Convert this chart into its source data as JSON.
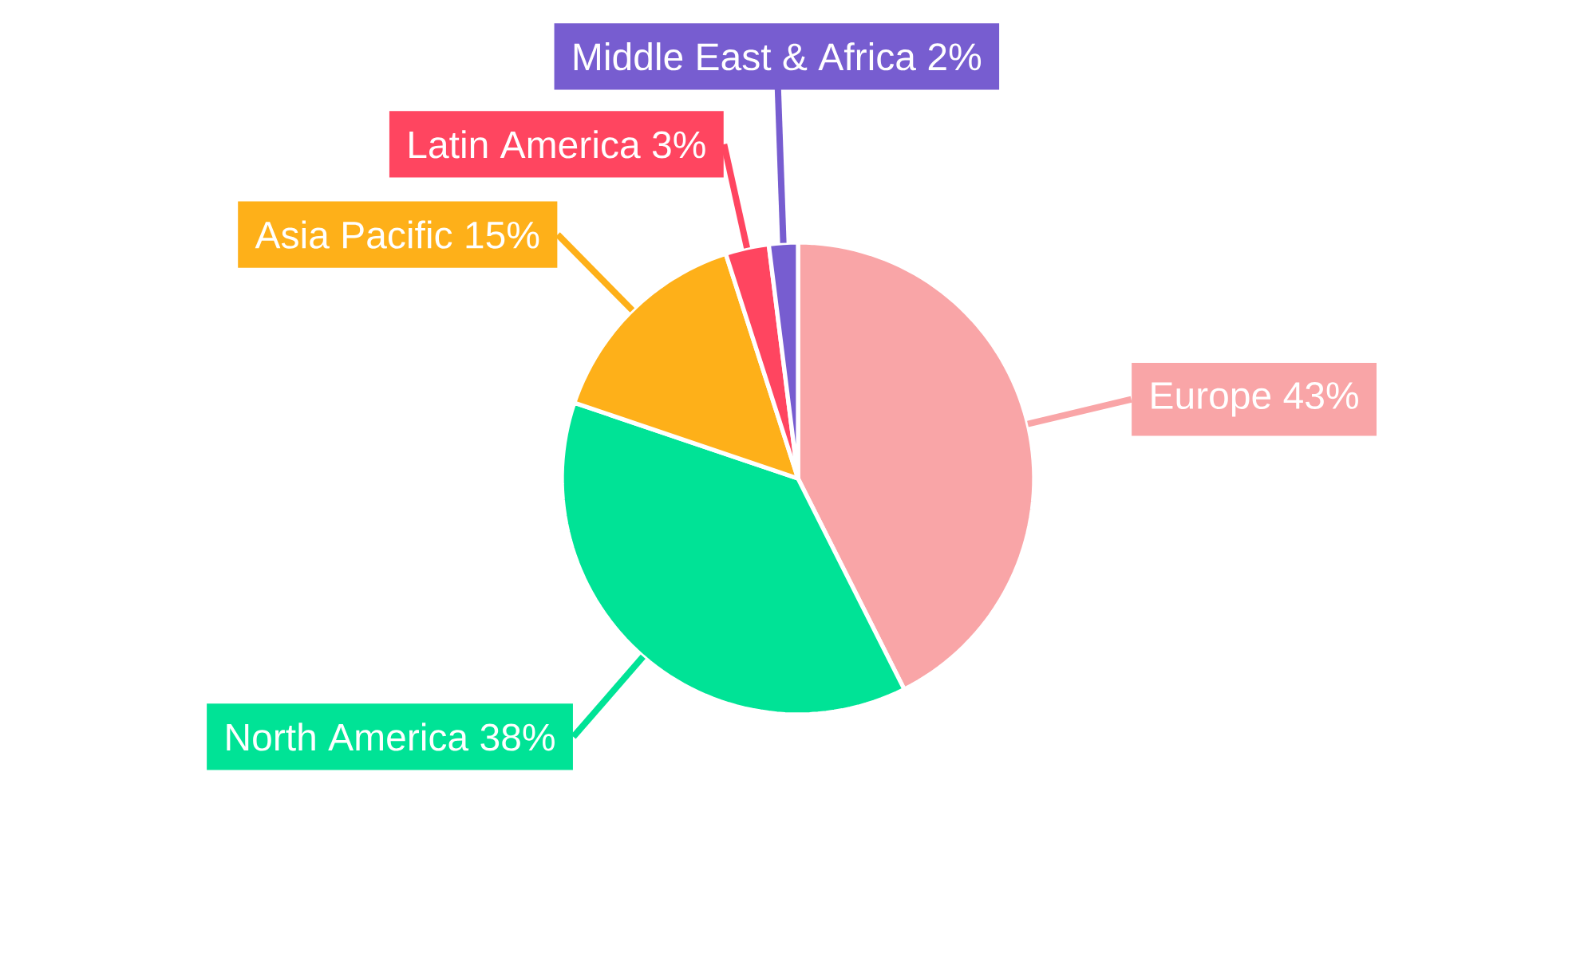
{
  "chart_data": {
    "type": "pie",
    "categories": [
      "Europe",
      "North America",
      "Asia Pacific",
      "Latin America",
      "Middle East & Africa"
    ],
    "values": [
      43,
      38,
      15,
      3,
      2
    ],
    "value_labels": [
      "43%",
      "38%",
      "15%",
      "3%",
      "2%"
    ],
    "colors": [
      "#f9a5a7",
      "#00e396",
      "#feb019",
      "#ff4560",
      "#775dd0"
    ]
  }
}
